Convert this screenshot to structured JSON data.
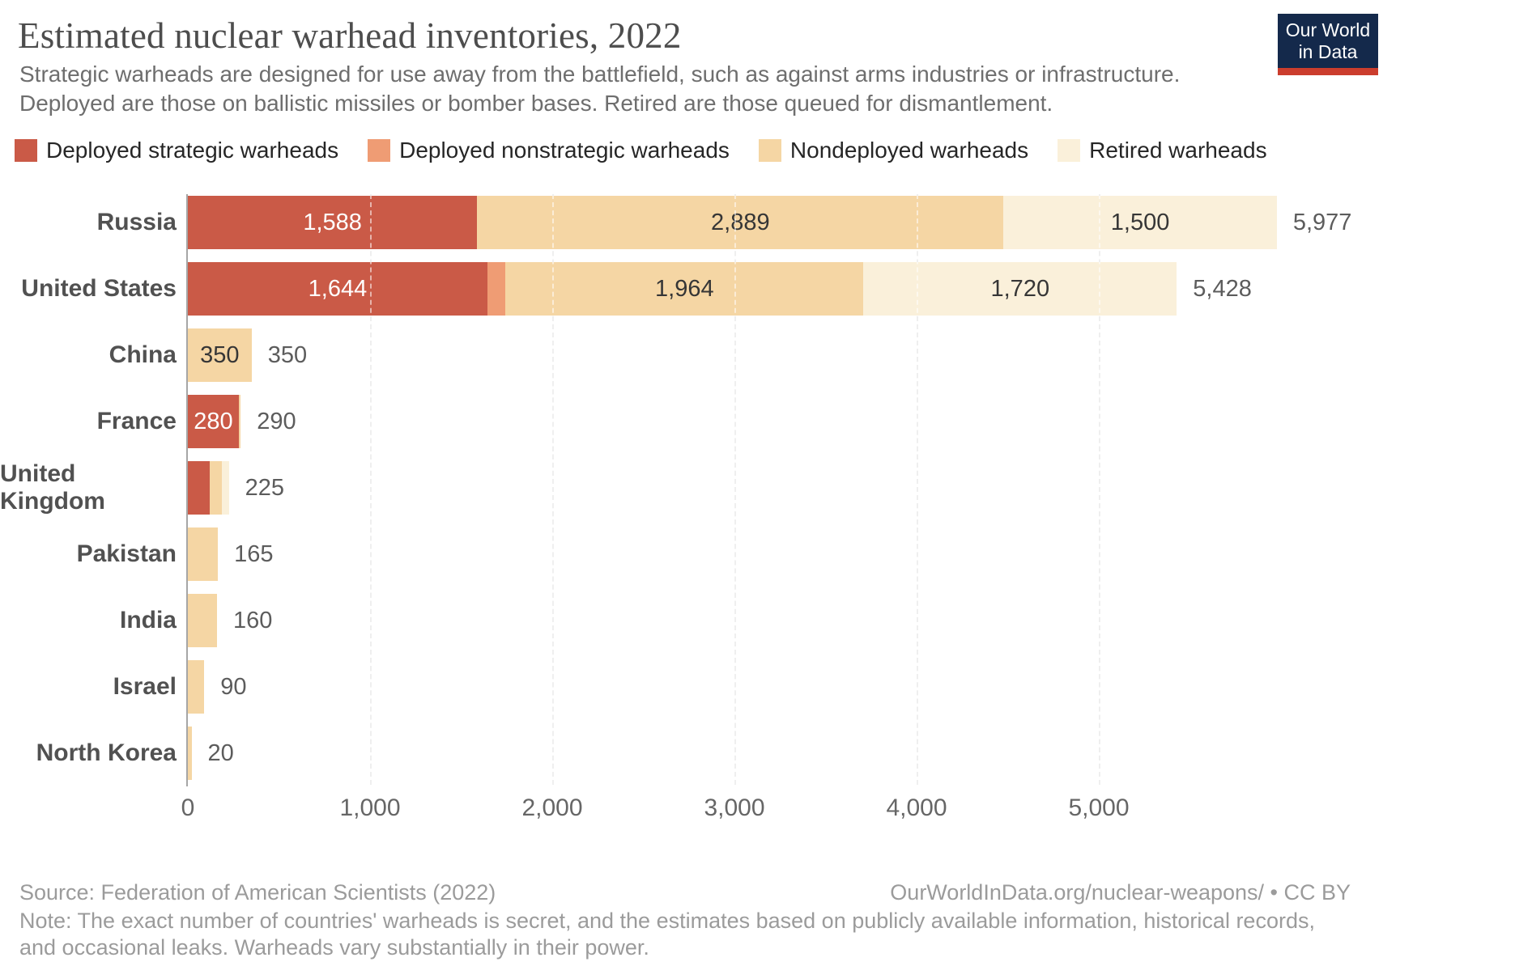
{
  "header": {
    "title": "Estimated nuclear warhead inventories, 2022",
    "subtitle_line1": "Strategic warheads are designed for use away from the battlefield, such as against arms industries or infrastructure.",
    "subtitle_line2": "Deployed are those on ballistic missiles or bomber bases. Retired are those queued for dismantlement.",
    "logo": {
      "line1": "Our World",
      "line2": "in Data",
      "bg_color": "#14294B",
      "accent_color": "#CB3D2D"
    }
  },
  "legend": {
    "items": [
      {
        "key": "deployed_strategic",
        "label": "Deployed strategic warheads",
        "color": "#CA5A47"
      },
      {
        "key": "deployed_nonstrategic",
        "label": "Deployed nonstrategic warheads",
        "color": "#EF9C74"
      },
      {
        "key": "nondeployed",
        "label": "Nondeployed warheads",
        "color": "#F5D6A4"
      },
      {
        "key": "retired",
        "label": "Retired warheads",
        "color": "#FAF0DA"
      }
    ]
  },
  "chart_data": {
    "type": "bar",
    "orientation": "horizontal",
    "title": "Estimated nuclear warhead inventories, 2022",
    "xlabel": "",
    "ylabel": "",
    "xlim": [
      0,
      5977
    ],
    "grid": true,
    "legend_position": "top",
    "colors": {
      "deployed_strategic": "#CA5A47",
      "deployed_nonstrategic": "#EF9C74",
      "nondeployed": "#F5D6A4",
      "retired": "#FAF0DA"
    },
    "x_ticks": [
      {
        "value": 0,
        "label": "0"
      },
      {
        "value": 1000,
        "label": "1,000"
      },
      {
        "value": 2000,
        "label": "2,000"
      },
      {
        "value": 3000,
        "label": "3,000"
      },
      {
        "value": 4000,
        "label": "4,000"
      },
      {
        "value": 5000,
        "label": "5,000"
      }
    ],
    "rows": [
      {
        "country": "Russia",
        "total": 5977,
        "total_label": "5,977",
        "segments": [
          {
            "series": "deployed_strategic",
            "value": 1588,
            "label": "1,588",
            "label_style": "light"
          },
          {
            "series": "nondeployed",
            "value": 2889,
            "label": "2,889",
            "label_style": "dark"
          },
          {
            "series": "retired",
            "value": 1500,
            "label": "1,500",
            "label_style": "dark"
          }
        ]
      },
      {
        "country": "United States",
        "total": 5428,
        "total_label": "5,428",
        "segments": [
          {
            "series": "deployed_strategic",
            "value": 1644,
            "label": "1,644",
            "label_style": "light"
          },
          {
            "series": "deployed_nonstrategic",
            "value": 100
          },
          {
            "series": "nondeployed",
            "value": 1964,
            "label": "1,964",
            "label_style": "dark"
          },
          {
            "series": "retired",
            "value": 1720,
            "label": "1,720",
            "label_style": "dark"
          }
        ]
      },
      {
        "country": "China",
        "total": 350,
        "total_label": "350",
        "segments": [
          {
            "series": "nondeployed",
            "value": 350,
            "label": "350",
            "label_style": "dark"
          }
        ]
      },
      {
        "country": "France",
        "total": 290,
        "total_label": "290",
        "segments": [
          {
            "series": "deployed_strategic",
            "value": 280,
            "label": "280",
            "label_style": "light"
          },
          {
            "series": "nondeployed",
            "value": 10
          }
        ]
      },
      {
        "country": "United Kingdom",
        "total": 225,
        "total_label": "225",
        "segments": [
          {
            "series": "deployed_strategic",
            "value": 120
          },
          {
            "series": "nondeployed",
            "value": 65
          },
          {
            "series": "retired",
            "value": 40
          }
        ]
      },
      {
        "country": "Pakistan",
        "total": 165,
        "total_label": "165",
        "segments": [
          {
            "series": "nondeployed",
            "value": 165
          }
        ]
      },
      {
        "country": "India",
        "total": 160,
        "total_label": "160",
        "segments": [
          {
            "series": "nondeployed",
            "value": 160
          }
        ]
      },
      {
        "country": "Israel",
        "total": 90,
        "total_label": "90",
        "segments": [
          {
            "series": "nondeployed",
            "value": 90
          }
        ]
      },
      {
        "country": "North Korea",
        "total": 20,
        "total_label": "20",
        "segments": [
          {
            "series": "nondeployed",
            "value": 20
          }
        ]
      }
    ]
  },
  "footer": {
    "source": "Source: Federation of American Scientists (2022)",
    "license": "OurWorldInData.org/nuclear-weapons/ • CC BY",
    "note": "Note: The exact number of countries' warheads is secret, and the estimates based on publicly available information, historical records, and occasional leaks. Warheads vary substantially in their power."
  }
}
